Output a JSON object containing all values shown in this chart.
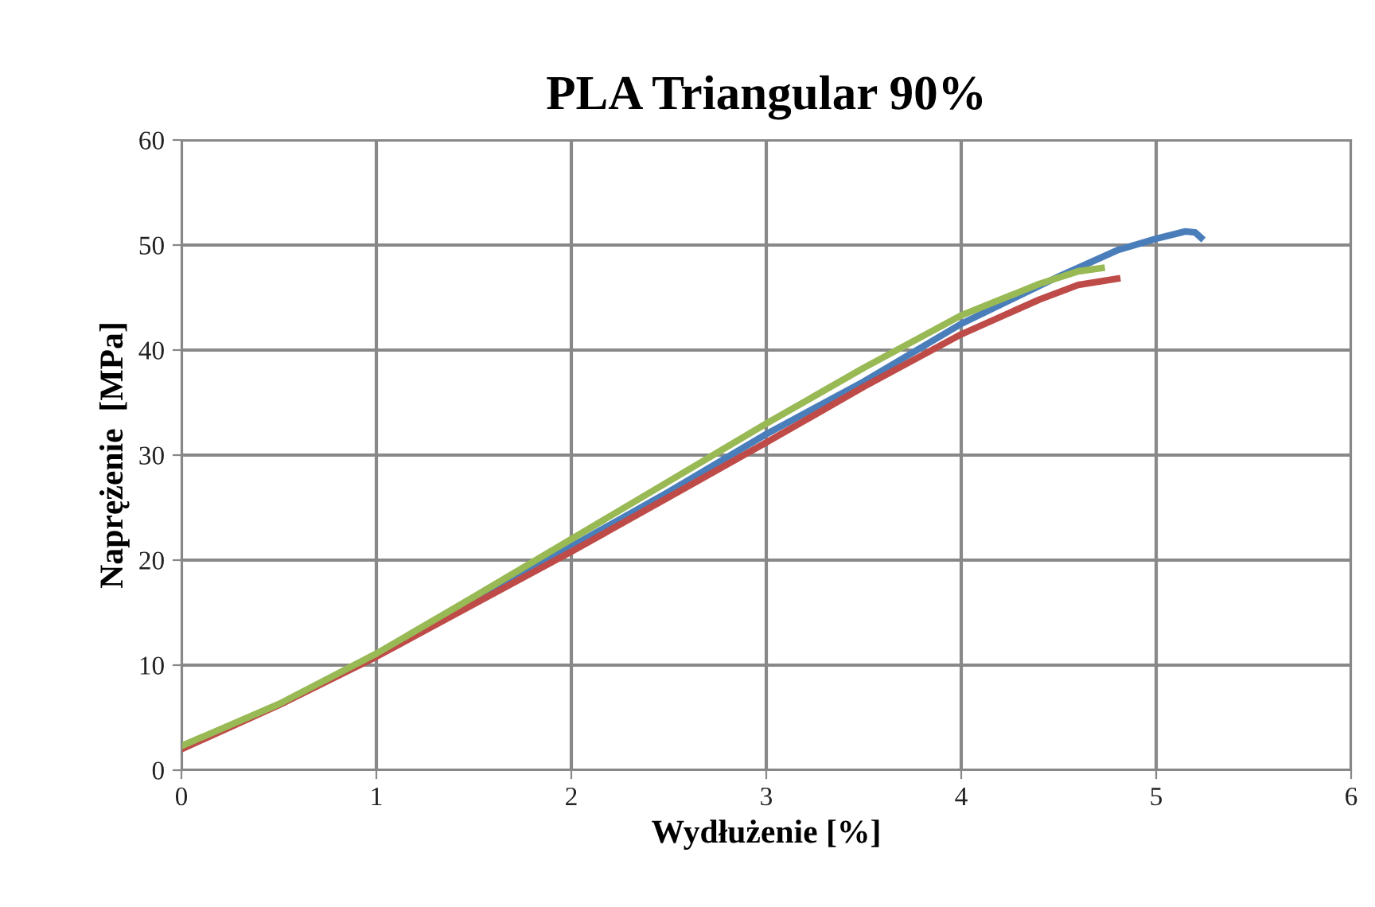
{
  "chart_data": {
    "type": "line",
    "title": "PLA Triangular 90%",
    "xlabel": "Wydłużenie [%]",
    "ylabel": "Naprężenie  [MPa]",
    "xlim": [
      0,
      6
    ],
    "xticks": [
      0,
      1,
      2,
      3,
      4,
      5,
      6
    ],
    "ylim": [
      0,
      60
    ],
    "yticks": [
      0,
      10,
      20,
      30,
      40,
      50,
      60
    ],
    "grid": true,
    "legend": false,
    "marker": "none",
    "line_style": "solid",
    "series": [
      {
        "color": "#4a7ebb",
        "x": [
          1,
          1.5,
          2,
          2.5,
          3,
          3.5,
          4,
          4.5,
          4.8,
          5,
          5.15,
          5.2,
          5.23
        ],
        "values": [
          11,
          16,
          21.3,
          26.5,
          32,
          37,
          42.5,
          47,
          49.5,
          50.6,
          51.3,
          51.2,
          50.7
        ]
      },
      {
        "color": "#be4b48",
        "x": [
          0,
          0.5,
          1,
          1.5,
          2,
          2.5,
          3,
          3.5,
          4,
          4.4,
          4.6,
          4.8
        ],
        "values": [
          2,
          6.2,
          10.8,
          15.8,
          20.8,
          26,
          31.2,
          36.5,
          41.5,
          44.8,
          46.2,
          46.8
        ]
      },
      {
        "color": "#98b954",
        "x": [
          0,
          0.5,
          1,
          1.5,
          2,
          2.5,
          3,
          3.5,
          4,
          4.4,
          4.6,
          4.72
        ],
        "values": [
          2.3,
          6.3,
          11.1,
          16.5,
          22,
          27.5,
          33,
          38.3,
          43.3,
          46.3,
          47.5,
          47.8
        ]
      }
    ]
  }
}
